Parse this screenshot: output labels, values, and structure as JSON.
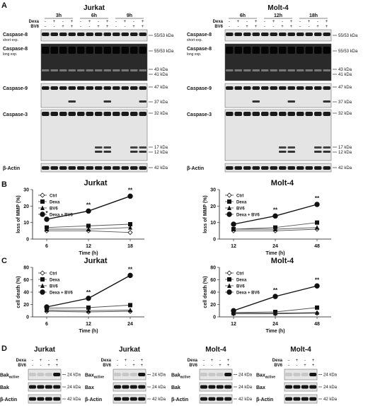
{
  "panel_labels": {
    "A": "A",
    "B": "B",
    "C": "C",
    "D": "D"
  },
  "panelA": {
    "treat_labels": {
      "dexa": "Dexa",
      "bv6": "BV6"
    },
    "jurkat": {
      "title": "Jurkat",
      "times": [
        "3h",
        "6h",
        "9h"
      ],
      "dexa_signs": [
        "-",
        "+",
        "-",
        "+",
        "-",
        "+",
        "-",
        "+",
        "-",
        "+",
        "-",
        "+"
      ],
      "bv6_signs": [
        "-",
        "-",
        "+",
        "+",
        "-",
        "-",
        "+",
        "+",
        "-",
        "-",
        "+",
        "+"
      ],
      "rows": [
        {
          "label": "Caspase-8",
          "sublabel": "short exp.",
          "markers": [
            "55/53 kDa"
          ]
        },
        {
          "label": "Caspase-8",
          "sublabel": "long exp.",
          "markers": [
            "55/53 kDa",
            "43 kDa",
            "41 kDa"
          ]
        },
        {
          "label": "Caspase-9",
          "sublabel": "",
          "markers": [
            "47 kDa",
            "37 kDa"
          ]
        },
        {
          "label": "Caspase-3",
          "sublabel": "",
          "markers": [
            "32 kDa",
            "17 kDa",
            "12 kDa"
          ]
        },
        {
          "label": "β-Actin",
          "sublabel": "",
          "markers": [
            "42 kDa"
          ]
        }
      ]
    },
    "molt4": {
      "title": "Molt-4",
      "times": [
        "6h",
        "12h",
        "18h"
      ],
      "dexa_signs": [
        "-",
        "+",
        "-",
        "+",
        "-",
        "+",
        "-",
        "+",
        "-",
        "+",
        "-",
        "+"
      ],
      "bv6_signs": [
        "-",
        "-",
        "+",
        "+",
        "-",
        "-",
        "+",
        "+",
        "-",
        "-",
        "+",
        "+"
      ],
      "rows": [
        {
          "label": "Caspase-8",
          "sublabel": "short exp.",
          "markers": [
            "55/53 kDa"
          ]
        },
        {
          "label": "Caspase-8",
          "sublabel": "long exp.",
          "markers": [
            "55/53 kDa",
            "43 kDa",
            "41 kDa"
          ]
        },
        {
          "label": "Caspase-9",
          "sublabel": "",
          "markers": [
            "47 kDa",
            "37 kDa"
          ]
        },
        {
          "label": "Caspase-3",
          "sublabel": "",
          "markers": [
            "32 kDa",
            "17 kDa",
            "12 kDa"
          ]
        },
        {
          "label": "β-Actin",
          "sublabel": "",
          "markers": [
            "42 kDa"
          ]
        }
      ]
    }
  },
  "chart_data": [
    {
      "id": "B-jurkat",
      "type": "line",
      "title": "Jurkat",
      "xlabel": "Time (h)",
      "ylabel": "loss of MMP (%)",
      "categories": [
        "6",
        "12",
        "18"
      ],
      "ylim": [
        0,
        30
      ],
      "yticks": [
        0,
        10,
        20,
        30
      ],
      "series": [
        {
          "name": "Ctrl",
          "marker": "diamond",
          "values": [
            5,
            5,
            4
          ]
        },
        {
          "name": "Dexa",
          "marker": "square",
          "values": [
            7,
            8,
            9
          ]
        },
        {
          "name": "BV6",
          "marker": "triangle",
          "values": [
            6,
            6,
            7
          ]
        },
        {
          "name": "Dexa + BV6",
          "marker": "circle",
          "values": [
            12,
            17,
            26
          ]
        }
      ],
      "sig": [
        "*",
        "**",
        "**"
      ],
      "legend": "top-left"
    },
    {
      "id": "B-molt4",
      "type": "line",
      "title": "Molt-4",
      "xlabel": "Time (h)",
      "ylabel": "loss of MMP (%)",
      "categories": [
        "12",
        "24",
        "48"
      ],
      "ylim": [
        0,
        30
      ],
      "yticks": [
        0,
        10,
        20,
        30
      ],
      "series": [
        {
          "name": "Ctrl",
          "marker": "diamond",
          "values": [
            5,
            5,
            6
          ]
        },
        {
          "name": "Dexa",
          "marker": "square",
          "values": [
            6,
            7,
            10
          ]
        },
        {
          "name": "BV6",
          "marker": "triangle",
          "values": [
            6,
            6,
            7
          ]
        },
        {
          "name": "Dexa + BV6",
          "marker": "circle",
          "values": [
            9,
            14,
            21
          ]
        }
      ],
      "sig": [
        "",
        "**",
        "**"
      ],
      "legend": "top-left"
    },
    {
      "id": "C-jurkat",
      "type": "line",
      "title": "Jurkat",
      "xlabel": "Time (h)",
      "ylabel": "cell death (%)",
      "categories": [
        "6",
        "12",
        "24"
      ],
      "ylim": [
        0,
        80
      ],
      "yticks": [
        0,
        20,
        40,
        60,
        80
      ],
      "series": [
        {
          "name": "Ctrl",
          "marker": "diamond",
          "values": [
            9,
            8,
            9
          ]
        },
        {
          "name": "Dexa",
          "marker": "square",
          "values": [
            14,
            15,
            19
          ]
        },
        {
          "name": "BV6",
          "marker": "triangle",
          "values": [
            11,
            10,
            11
          ]
        },
        {
          "name": "Dexa + BV6",
          "marker": "circle",
          "values": [
            16,
            30,
            67
          ]
        }
      ],
      "sig": [
        "",
        "**",
        "**"
      ],
      "legend": "top-left"
    },
    {
      "id": "C-molt4",
      "type": "line",
      "title": "Molt-4",
      "xlabel": "Time (h)",
      "ylabel": "cell death (%)",
      "categories": [
        "12",
        "24",
        "48"
      ],
      "ylim": [
        0,
        80
      ],
      "yticks": [
        0,
        20,
        40,
        60,
        80
      ],
      "series": [
        {
          "name": "Ctrl",
          "marker": "diamond",
          "values": [
            5,
            5,
            6
          ]
        },
        {
          "name": "Dexa",
          "marker": "square",
          "values": [
            7,
            8,
            15
          ]
        },
        {
          "name": "BV6",
          "marker": "triangle",
          "values": [
            6,
            6,
            7
          ]
        },
        {
          "name": "Dexa + BV6",
          "marker": "circle",
          "values": [
            10,
            33,
            50
          ]
        }
      ],
      "sig": [
        "",
        "**",
        "**"
      ],
      "legend": "top-left"
    }
  ],
  "panelD": {
    "treat_labels": {
      "dexa": "Dexa",
      "bv6": "BV6"
    },
    "dexa_signs": [
      "-",
      "+",
      "-",
      "+"
    ],
    "bv6_signs": [
      "-",
      "-",
      "+",
      "+"
    ],
    "blocks": [
      {
        "title": "Jurkat",
        "rows": [
          {
            "label": "Bak",
            "sub": "active",
            "marker": "24 kDa"
          },
          {
            "label": "Bak",
            "sub": "",
            "marker": "24 kDa"
          },
          {
            "label": "β-Actin",
            "sub": "",
            "marker": "42 kDa"
          }
        ]
      },
      {
        "title": "Jurkat",
        "rows": [
          {
            "label": "Bax",
            "sub": "active",
            "marker": "24 kDa"
          },
          {
            "label": "Bax",
            "sub": "",
            "marker": "24 kDa"
          },
          {
            "label": "β-Actin",
            "sub": "",
            "marker": "42 kDa"
          }
        ]
      },
      {
        "title": "Molt-4",
        "rows": [
          {
            "label": "Bak",
            "sub": "active",
            "marker": "24 kDa"
          },
          {
            "label": "Bak",
            "sub": "",
            "marker": "24 kDa"
          },
          {
            "label": "β-Actin",
            "sub": "",
            "marker": "42 kDa"
          }
        ]
      },
      {
        "title": "Molt-4",
        "rows": [
          {
            "label": "Bax",
            "sub": "active",
            "marker": "24 kDa"
          },
          {
            "label": "Bax",
            "sub": "",
            "marker": "24 kDa"
          },
          {
            "label": "β-Actin",
            "sub": "",
            "marker": "42 kDa"
          }
        ]
      }
    ]
  }
}
